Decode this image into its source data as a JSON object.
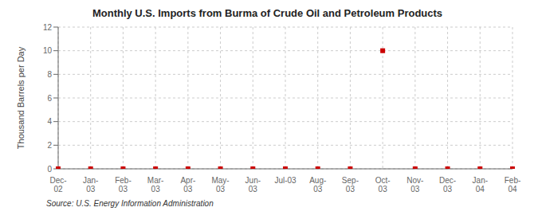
{
  "chart_data": {
    "type": "scatter",
    "title": "Monthly U.S. Imports from Burma of Crude Oil and Petroleum Products",
    "ylabel": "Thousand Barrels per Day",
    "source": "Source: U.S. Energy Information Administration",
    "categories": [
      "Dec-\n02",
      "Jan-\n03",
      "Feb-\n03",
      "Mar-\n03",
      "Apr-\n03",
      "May-\n03",
      "Jun-\n03",
      "Jul-03",
      "Aug-\n03",
      "Sep-\n03",
      "Oct-\n03",
      "Nov-\n03",
      "Dec-\n03",
      "Jan-\n04",
      "Feb-\n04"
    ],
    "values": [
      0,
      0,
      0,
      0,
      0,
      0,
      0,
      0,
      0,
      0,
      10,
      0,
      0,
      0,
      0
    ],
    "color": "#cc0000",
    "marker": "square",
    "ylim": [
      0,
      12
    ],
    "yticks": [
      0,
      2,
      4,
      6,
      8,
      10,
      12
    ],
    "grid": true
  }
}
